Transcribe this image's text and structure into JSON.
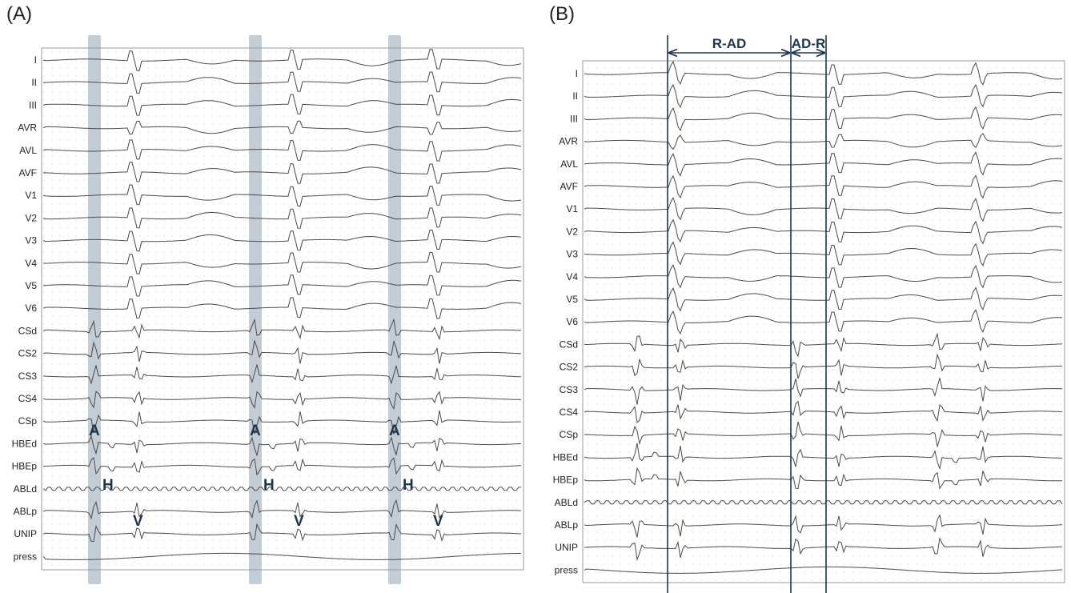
{
  "panels": [
    {
      "label": "(A)",
      "leads": [
        "I",
        "II",
        "III",
        "AVR",
        "AVL",
        "AVF",
        "V1",
        "V2",
        "V3",
        "V4",
        "V5",
        "V6",
        "CSd",
        "CS2",
        "CS3",
        "CS4",
        "CSp",
        "HBEd",
        "HBEp",
        "ABLd",
        "ABLp",
        "UNIP",
        "press"
      ],
      "markers": [
        "A",
        "H",
        "V"
      ]
    },
    {
      "label": "(B)",
      "leads": [
        "I",
        "II",
        "III",
        "AVR",
        "AVL",
        "AVF",
        "V1",
        "V2",
        "V3",
        "V4",
        "V5",
        "V6",
        "CSd",
        "CS2",
        "CS3",
        "CS4",
        "CSp",
        "HBEd",
        "HBEp",
        "ABLd",
        "ABLp",
        "UNIP",
        "press"
      ],
      "intervals": [
        "R-AD",
        "AD-R"
      ]
    }
  ],
  "colors": {
    "trace": "#4a4a4a",
    "grid": "#d9d9d9",
    "highlight": "#8fa4b4",
    "annotation": "#1d3550"
  }
}
